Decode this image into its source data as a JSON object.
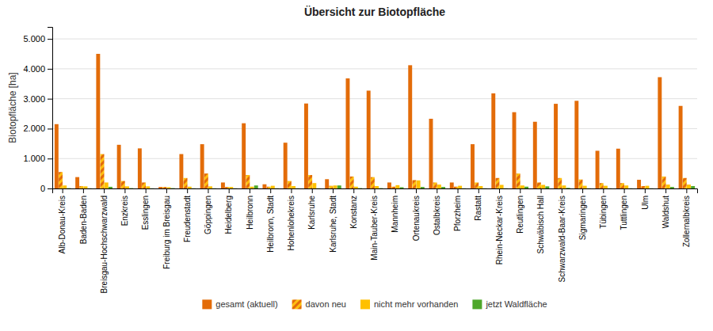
{
  "chart_data": {
    "type": "bar",
    "title": "Übersicht zur Biotopfläche",
    "ylabel": "Biotopfläche [ha]",
    "categories": [
      "Alb-Donau-Kreis",
      "Baden-Baden",
      "Breisgau-Hochschwarzwald",
      "Enzkreis",
      "Esslingen",
      "Freiburg im Breisgau",
      "Freudenstadt",
      "Göppingen",
      "Heidelberg",
      "Heilbronn",
      "Heilbronn, Stadt",
      "Hohenlohekreis",
      "Karlsruhe",
      "Karlsruhe, Stadt",
      "Konstanz",
      "Main-Tauber-Kreis",
      "Mannheim",
      "Ortenaukreis",
      "Ostalbkreis",
      "Pforzheim",
      "Rastatt",
      "Rhein-Neckar-Kreis",
      "Reutlingen",
      "Schwäbisch Hall",
      "Schwarzwald-Baar-Kreis",
      "Sigmaringen",
      "Tübingen",
      "Tuttlingen",
      "Ulm",
      "Waldshut",
      "Zollernalbkreis"
    ],
    "series": [
      {
        "name": "gesamt (aktuell)",
        "color": "#E36C09",
        "values": [
          2150,
          380,
          4500,
          1460,
          1340,
          50,
          1150,
          1480,
          200,
          2180,
          140,
          1530,
          2840,
          310,
          3680,
          3270,
          200,
          4120,
          2330,
          200,
          1480,
          3180,
          2550,
          2230,
          2830,
          2930,
          1260,
          1330,
          290,
          3720,
          2760
        ]
      },
      {
        "name": "davon neu",
        "color": "#E36C09",
        "values": [
          550,
          80,
          1150,
          250,
          200,
          50,
          350,
          500,
          50,
          450,
          60,
          250,
          450,
          90,
          400,
          380,
          60,
          280,
          200,
          60,
          200,
          350,
          500,
          200,
          350,
          300,
          180,
          180,
          80,
          400,
          350
        ]
      },
      {
        "name": "nicht mehr vorhanden",
        "color": "#FFC000",
        "values": [
          100,
          70,
          200,
          70,
          70,
          40,
          60,
          70,
          50,
          60,
          90,
          80,
          180,
          100,
          60,
          80,
          110,
          270,
          130,
          90,
          80,
          120,
          100,
          120,
          100,
          90,
          90,
          100,
          90,
          130,
          130
        ]
      },
      {
        "name": "jetzt Waldfläche",
        "color": "#4EA72A",
        "values": [
          10,
          5,
          55,
          10,
          5,
          10,
          5,
          5,
          5,
          100,
          5,
          5,
          5,
          100,
          10,
          10,
          40,
          50,
          50,
          5,
          5,
          5,
          60,
          70,
          20,
          5,
          5,
          5,
          5,
          50,
          80
        ]
      }
    ],
    "ylim": [
      0,
      5400
    ],
    "yticks": [
      0,
      {
        "value": 1000,
        "label": "1.000"
      },
      {
        "value": 2000,
        "label": "2.000"
      },
      {
        "value": 3000,
        "label": "3.000"
      },
      {
        "value": 4000,
        "label": "4.000"
      },
      {
        "value": 5000,
        "label": "5.000"
      }
    ],
    "grid": true,
    "legend": "bottom"
  }
}
